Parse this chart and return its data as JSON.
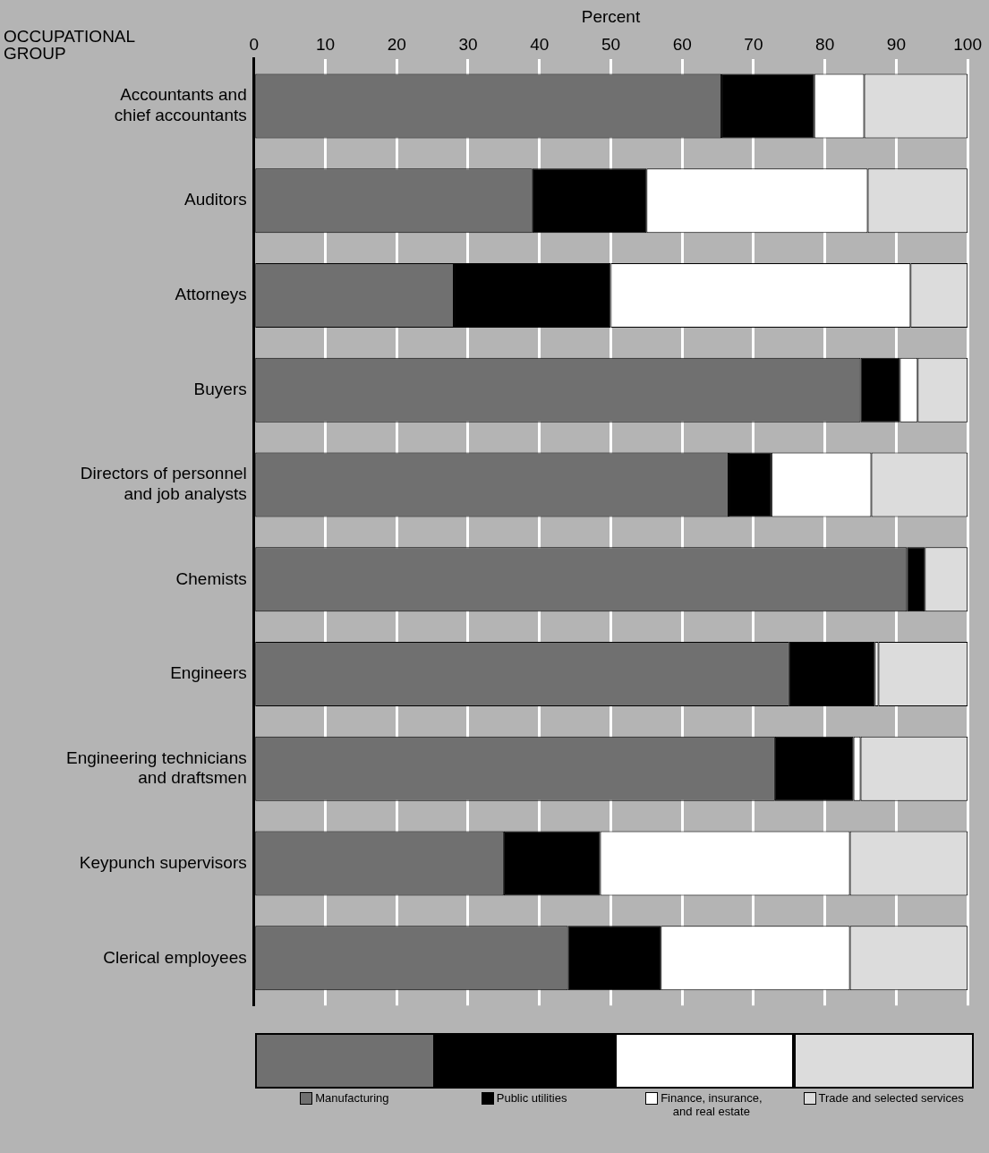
{
  "chart_data": {
    "type": "bar",
    "orientation": "horizontal",
    "stacked": true,
    "xlabel": "Percent",
    "ylabel": "OCCUPATIONAL\nGROUP",
    "categories": [
      "Accountants and\nchief accountants",
      "Auditors",
      "Attorneys",
      "Buyers",
      "Directors of personnel\nand job analysts",
      "Chemists",
      "Engineers",
      "Engineering technicians\nand draftsmen",
      "Keypunch supervisors",
      "Clerical employees"
    ],
    "series": [
      {
        "name": "Manufacturing",
        "color": "#707070",
        "values": [
          65.5,
          39,
          28,
          85,
          66.5,
          91.5,
          75,
          73,
          35,
          44
        ]
      },
      {
        "name": "Public utilities",
        "color": "#000000",
        "values": [
          13,
          16,
          22,
          5.5,
          6,
          2.5,
          12,
          11,
          13.5,
          13
        ]
      },
      {
        "name": "Finance, insurance,\nand real estate",
        "color": "#ffffff",
        "values": [
          7,
          31,
          42,
          2.5,
          14,
          0,
          0.5,
          1,
          35,
          26.5
        ]
      },
      {
        "name": "Trade and selected services",
        "color": "#dcdcdc",
        "values": [
          14.5,
          14,
          8,
          7,
          13.5,
          6,
          12.5,
          15,
          16.5,
          16.5
        ]
      }
    ],
    "xlim": [
      0,
      100
    ],
    "xticks": [
      0,
      10,
      20,
      30,
      40,
      50,
      60,
      70,
      80,
      90,
      100
    ],
    "grid": "x",
    "legend": "bottom"
  }
}
